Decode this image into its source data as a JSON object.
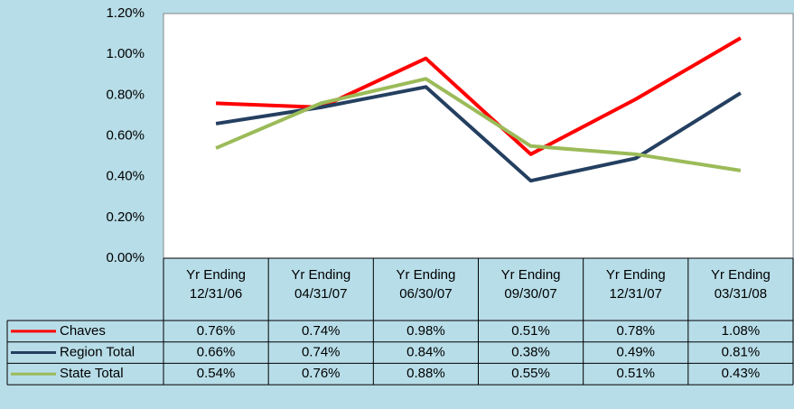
{
  "chart_data": {
    "type": "line",
    "categories": [
      "Yr Ending 12/31/06",
      "Yr Ending 04/31/07",
      "Yr Ending 06/30/07",
      "Yr Ending 09/30/07",
      "Yr Ending 12/31/07",
      "Yr Ending 03/31/08"
    ],
    "series": [
      {
        "name": "Chaves",
        "color": "#ff0000",
        "values": [
          0.76,
          0.74,
          0.98,
          0.51,
          0.78,
          1.08
        ],
        "value_labels": [
          "0.76%",
          "0.74%",
          "0.98%",
          "0.51%",
          "0.78%",
          "1.08%"
        ]
      },
      {
        "name": "Region Total",
        "color": "#243f60",
        "values": [
          0.66,
          0.74,
          0.84,
          0.38,
          0.49,
          0.81
        ],
        "value_labels": [
          "0.66%",
          "0.74%",
          "0.84%",
          "0.38%",
          "0.49%",
          "0.81%"
        ]
      },
      {
        "name": "State Total",
        "color": "#9bbb59",
        "values": [
          0.54,
          0.76,
          0.88,
          0.55,
          0.51,
          0.43
        ],
        "value_labels": [
          "0.54%",
          "0.76%",
          "0.88%",
          "0.55%",
          "0.51%",
          "0.43%"
        ]
      }
    ],
    "ylim": [
      0,
      1.2
    ],
    "yticks": [
      {
        "value": 0,
        "label": "0.00%"
      },
      {
        "value": 0.2,
        "label": "0.20%"
      },
      {
        "value": 0.4,
        "label": "0.40%"
      },
      {
        "value": 0.6,
        "label": "0.60%"
      },
      {
        "value": 0.8,
        "label": "0.80%"
      },
      {
        "value": 1.0,
        "label": "1.00%"
      },
      {
        "value": 1.2,
        "label": "1.20%"
      }
    ],
    "grid": false
  }
}
